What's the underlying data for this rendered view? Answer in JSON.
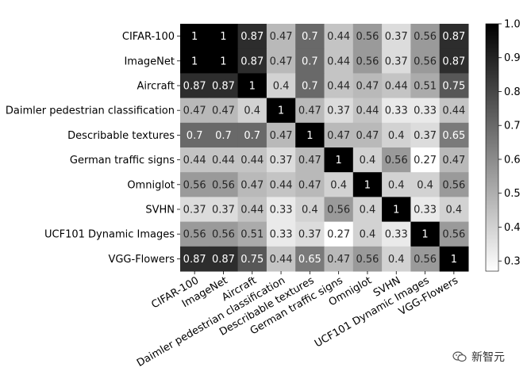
{
  "chart_data": {
    "type": "heatmap",
    "rows": [
      "CIFAR-100",
      "ImageNet",
      "Aircraft",
      "Daimler pedestrian classification",
      "Describable textures",
      "German traffic signs",
      "Omniglot",
      "SVHN",
      "UCF101 Dynamic Images",
      "VGG-Flowers"
    ],
    "columns": [
      "CIFAR-100",
      "ImageNet",
      "Aircraft",
      "Daimler pedestrian classification",
      "Describable textures",
      "German traffic signs",
      "Omniglot",
      "SVHN",
      "UCF101 Dynamic Images",
      "VGG-Flowers"
    ],
    "values": [
      [
        1,
        1,
        0.87,
        0.47,
        0.7,
        0.44,
        0.56,
        0.37,
        0.56,
        0.87
      ],
      [
        1,
        1,
        0.87,
        0.47,
        0.7,
        0.44,
        0.56,
        0.37,
        0.56,
        0.87
      ],
      [
        0.87,
        0.87,
        1,
        0.4,
        0.7,
        0.44,
        0.47,
        0.44,
        0.51,
        0.75
      ],
      [
        0.47,
        0.47,
        0.4,
        1,
        0.47,
        0.37,
        0.44,
        0.33,
        0.33,
        0.44
      ],
      [
        0.7,
        0.7,
        0.7,
        0.47,
        1,
        0.47,
        0.47,
        0.4,
        0.37,
        0.65
      ],
      [
        0.44,
        0.44,
        0.44,
        0.37,
        0.47,
        1,
        0.4,
        0.56,
        0.27,
        0.47
      ],
      [
        0.56,
        0.56,
        0.47,
        0.44,
        0.47,
        0.4,
        1,
        0.4,
        0.4,
        0.56
      ],
      [
        0.37,
        0.37,
        0.44,
        0.33,
        0.4,
        0.56,
        0.4,
        1,
        0.33,
        0.4
      ],
      [
        0.56,
        0.56,
        0.51,
        0.33,
        0.37,
        0.27,
        0.4,
        0.33,
        1,
        0.56
      ],
      [
        0.87,
        0.87,
        0.75,
        0.44,
        0.65,
        0.47,
        0.56,
        0.4,
        0.56,
        1
      ]
    ],
    "colorbar": {
      "range": [
        0.27,
        1.0
      ],
      "ticks": [
        "1.0",
        "0.9",
        "0.8",
        "0.7",
        "0.6",
        "0.5",
        "0.4",
        "0.3"
      ],
      "colormap": "Greys",
      "low_color": "#ffffff",
      "high_color": "#000000"
    },
    "grid": false
  },
  "watermark": {
    "text": "新智元"
  }
}
